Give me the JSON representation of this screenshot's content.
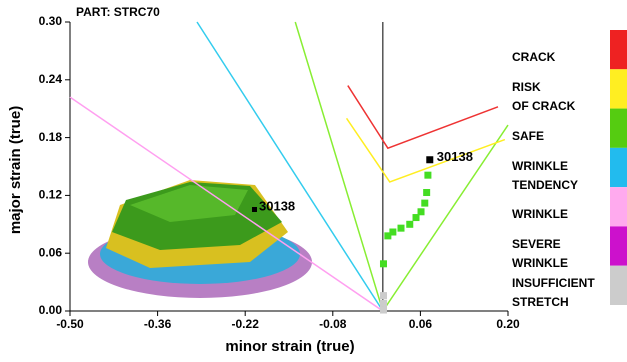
{
  "chart_data": {
    "type": "line",
    "title": "PART: STRC70",
    "x_label": "minor strain (true)",
    "y_label": "major strain (true)",
    "xlim": [
      -0.5,
      0.2
    ],
    "ylim": [
      0,
      0.3
    ],
    "xticks": [
      {
        "value": -0.5,
        "label": "-0.50"
      },
      -0.36,
      -0.22,
      -0.08,
      0.06,
      {
        "value": 0.2,
        "label": "0.20"
      }
    ],
    "yticks": [
      {
        "value": 0,
        "label": "0.00"
      },
      0.06,
      0.12,
      0.18,
      0.24,
      {
        "value": 0.3,
        "label": "0.30"
      }
    ],
    "series": [
      {
        "color": "#ff9ff0",
        "mode": "line",
        "x": [
          -0.5,
          0
        ],
        "values": [
          0.222,
          0
        ]
      },
      {
        "color": "#33ccee",
        "mode": "line",
        "x": [
          -0.297,
          0
        ],
        "values": [
          0.3,
          0
        ]
      },
      {
        "color": "#88ee33",
        "mode": "line",
        "x": [
          -0.14,
          0,
          0.2
        ],
        "values": [
          0.3,
          0,
          0.193
        ]
      },
      {
        "color": "#ee3333",
        "mode": "line",
        "x": [
          -0.056,
          0.008,
          0.184
        ],
        "values": [
          0.234,
          0.169,
          0.212
        ]
      },
      {
        "color": "#ffee22",
        "mode": "line",
        "x": [
          -0.058,
          0.011,
          0.195
        ],
        "values": [
          0.2,
          0.134,
          0.178
        ]
      },
      {
        "color": "#44dd22",
        "mode": "markers",
        "x": [
          0.001,
          0.008,
          0.016,
          0.029,
          0.043,
          0.053,
          0.061,
          0.067,
          0.07,
          0.072
        ],
        "values": [
          0.049,
          0.078,
          0.082,
          0.086,
          0.09,
          0.097,
          0.103,
          0.112,
          0.123,
          0.141
        ]
      },
      {
        "color": "#000000",
        "mode": "markers",
        "x": [
          0.075
        ],
        "values": [
          0.157
        ]
      },
      {
        "color": "#cccccc",
        "mode": "markers",
        "x": [
          0.001,
          0.001,
          0.001
        ],
        "values": [
          0.016,
          0.008,
          0.001
        ]
      }
    ],
    "annotations": [
      "30138",
      "30138"
    ],
    "legend": [
      {
        "label": "CRACK",
        "color": "#ee2222"
      },
      {
        "label": "RISK\nOF CRACK",
        "color": "#ffee22"
      },
      {
        "label": "SAFE",
        "color": "#55cc11"
      },
      {
        "label": "WRINKLE\nTENDENCY",
        "color": "#22bbee"
      },
      {
        "label": "WRINKLE",
        "color": "#ffaaee"
      },
      {
        "label": "SEVERE\nWRINKLE",
        "color": "#cc11cc"
      },
      {
        "label": "INSUFFICIENT\nSTRETCH",
        "color": "#cccccc"
      }
    ]
  }
}
